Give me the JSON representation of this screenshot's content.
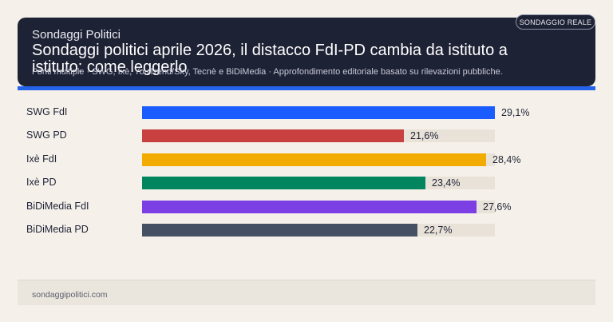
{
  "header": {
    "brand": "Sondaggi Politici",
    "title": "Sondaggi politici aprile 2026, il distacco FdI-PD cambia da istituto a istituto: come leggerlo",
    "subtitle": "Fonti multiple · SWG, Ixè, YouTrend/Sky, Tecnè e BiDiMedia · Approfondimento editoriale basato su rilevazioni pubbliche.",
    "badge": "SONDAGGIO REALE"
  },
  "colors": {
    "header_bg": "#1e2235",
    "accent": "#2563eb",
    "track": "#e8e2d8"
  },
  "chart_data": {
    "type": "bar",
    "orientation": "horizontal",
    "categories": [
      "SWG FdI",
      "SWG PD",
      "Ixè FdI",
      "Ixè PD",
      "BiDiMedia FdI",
      "BiDiMedia PD"
    ],
    "values": [
      29.1,
      21.6,
      28.4,
      23.4,
      27.6,
      22.7
    ],
    "value_labels": [
      "29,1%",
      "21,6%",
      "28,4%",
      "23,4%",
      "27,6%",
      "22,7%"
    ],
    "bar_colors": [
      "#1a5cff",
      "#c84040",
      "#f2ab00",
      "#00855f",
      "#7b3fe4",
      "#465064"
    ],
    "xlim": [
      0,
      29.1
    ],
    "title": "",
    "xlabel": "",
    "ylabel": "",
    "grid": false,
    "legend": "none"
  },
  "footer": {
    "site": "sondaggipolitici.com"
  }
}
